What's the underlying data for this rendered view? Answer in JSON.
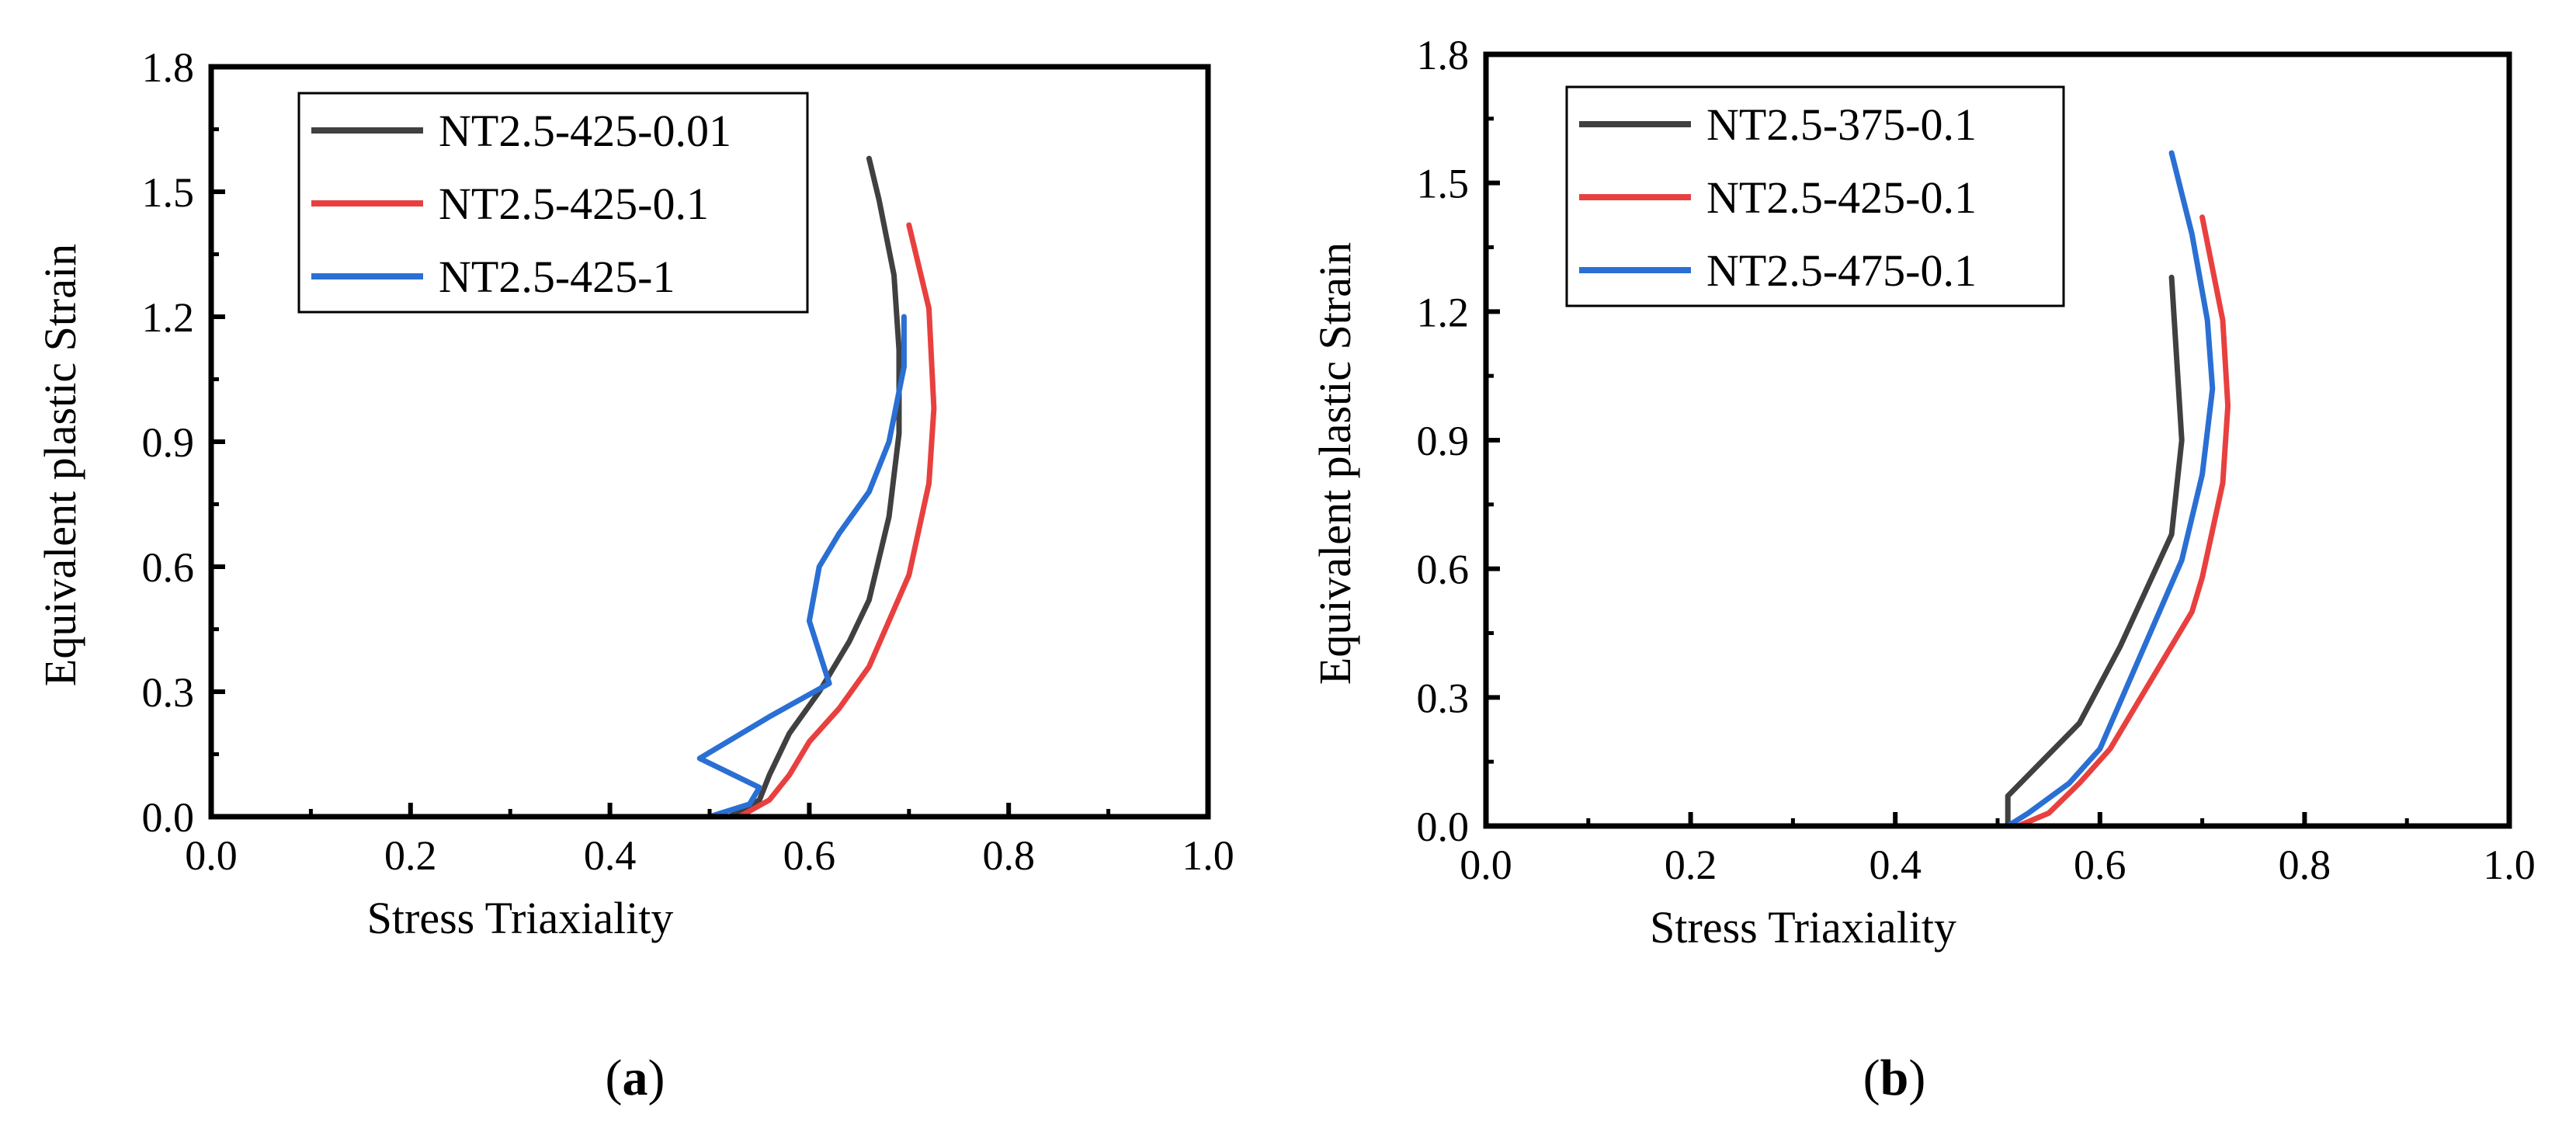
{
  "chart_data": [
    {
      "type": "line",
      "panel": "a",
      "xlabel": "Stress Triaxiality",
      "ylabel": "Equivalent plastic Strain",
      "xlim": [
        0,
        1
      ],
      "ylim": [
        0,
        1.8
      ],
      "xticks": [
        "0.0",
        "0.2",
        "0.4",
        "0.6",
        "0.8",
        "1.0"
      ],
      "yticks": [
        "0.0",
        "0.3",
        "0.6",
        "0.9",
        "1.2",
        "1.5",
        "1.8"
      ],
      "legend_position": "top-left",
      "series": [
        {
          "name": "NT2.5-425-0.01",
          "color": "#404040",
          "points": [
            [
              0,
              0
            ],
            [
              0.52,
              0
            ],
            [
              0.55,
              0.04
            ],
            [
              0.56,
              0.1
            ],
            [
              0.58,
              0.2
            ],
            [
              0.61,
              0.3
            ],
            [
              0.64,
              0.42
            ],
            [
              0.66,
              0.52
            ],
            [
              0.68,
              0.72
            ],
            [
              0.69,
              0.92
            ],
            [
              0.69,
              1.12
            ],
            [
              0.685,
              1.3
            ],
            [
              0.67,
              1.48
            ],
            [
              0.66,
              1.58
            ]
          ]
        },
        {
          "name": "NT2.5-425-0.1",
          "color": "#e8403f",
          "points": [
            [
              0,
              0
            ],
            [
              0.53,
              0
            ],
            [
              0.56,
              0.04
            ],
            [
              0.58,
              0.1
            ],
            [
              0.6,
              0.18
            ],
            [
              0.63,
              0.26
            ],
            [
              0.66,
              0.36
            ],
            [
              0.7,
              0.58
            ],
            [
              0.72,
              0.8
            ],
            [
              0.725,
              0.98
            ],
            [
              0.72,
              1.22
            ],
            [
              0.7,
              1.42
            ]
          ]
        },
        {
          "name": "NT2.5-425-1",
          "color": "#2a6fd3",
          "points": [
            [
              0,
              0
            ],
            [
              0.5,
              0
            ],
            [
              0.54,
              0.03
            ],
            [
              0.55,
              0.07
            ],
            [
              0.49,
              0.14
            ],
            [
              0.56,
              0.24
            ],
            [
              0.62,
              0.32
            ],
            [
              0.6,
              0.47
            ],
            [
              0.61,
              0.6
            ],
            [
              0.63,
              0.68
            ],
            [
              0.66,
              0.78
            ],
            [
              0.68,
              0.9
            ],
            [
              0.695,
              1.08
            ],
            [
              0.695,
              1.2
            ]
          ]
        }
      ]
    },
    {
      "type": "line",
      "panel": "b",
      "xlabel": "Stress Triaxiality",
      "ylabel": "Equivalent plastic Strain",
      "xlim": [
        0,
        1
      ],
      "ylim": [
        0,
        1.8
      ],
      "xticks": [
        "0.0",
        "0.2",
        "0.4",
        "0.6",
        "0.8",
        "1.0"
      ],
      "yticks": [
        "0.0",
        "0.3",
        "0.6",
        "0.9",
        "1.2",
        "1.5",
        "1.8"
      ],
      "legend_position": "top-left",
      "series": [
        {
          "name": "NT2.5-375-0.1",
          "color": "#404040",
          "points": [
            [
              0,
              0
            ],
            [
              0.51,
              0
            ],
            [
              0.51,
              0.07
            ],
            [
              0.58,
              0.24
            ],
            [
              0.62,
              0.42
            ],
            [
              0.67,
              0.68
            ],
            [
              0.68,
              0.9
            ],
            [
              0.67,
              1.28
            ]
          ]
        },
        {
          "name": "NT2.5-425-0.1",
          "color": "#e8403f",
          "points": [
            [
              0,
              0
            ],
            [
              0.52,
              0
            ],
            [
              0.55,
              0.03
            ],
            [
              0.58,
              0.1
            ],
            [
              0.61,
              0.18
            ],
            [
              0.65,
              0.34
            ],
            [
              0.69,
              0.5
            ],
            [
              0.7,
              0.58
            ],
            [
              0.72,
              0.8
            ],
            [
              0.725,
              0.98
            ],
            [
              0.72,
              1.18
            ],
            [
              0.7,
              1.42
            ]
          ]
        },
        {
          "name": "NT2.5-475-0.1",
          "color": "#2a6fd3",
          "points": [
            [
              0,
              0
            ],
            [
              0.51,
              0
            ],
            [
              0.53,
              0.03
            ],
            [
              0.57,
              0.1
            ],
            [
              0.6,
              0.18
            ],
            [
              0.64,
              0.4
            ],
            [
              0.68,
              0.62
            ],
            [
              0.7,
              0.82
            ],
            [
              0.71,
              1.02
            ],
            [
              0.705,
              1.18
            ],
            [
              0.69,
              1.38
            ],
            [
              0.67,
              1.57
            ]
          ]
        }
      ]
    }
  ],
  "panel_labels": [
    {
      "open": "(",
      "letter": "a",
      "close": ")"
    },
    {
      "open": "(",
      "letter": "b",
      "close": ")"
    }
  ]
}
